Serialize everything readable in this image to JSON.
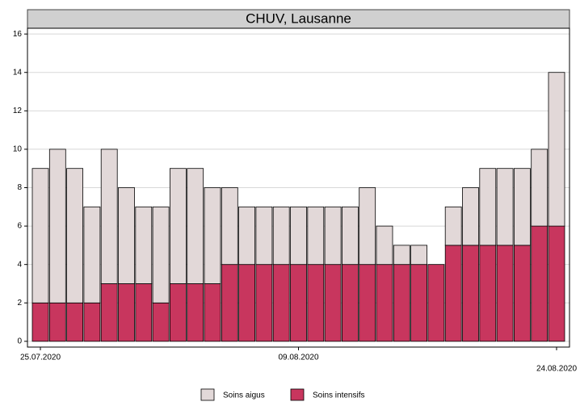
{
  "chart_data": {
    "type": "stacked-bar",
    "title": "CHUV, Lausanne",
    "categories": [
      "25.07.2020",
      null,
      null,
      null,
      null,
      null,
      null,
      null,
      null,
      null,
      null,
      null,
      null,
      null,
      null,
      "09.08.2020",
      null,
      null,
      null,
      null,
      null,
      null,
      null,
      null,
      null,
      null,
      null,
      null,
      null,
      null,
      "24.08.2020"
    ],
    "series": [
      {
        "name": "Soins intensifs",
        "color": "#c8365e",
        "values": [
          2,
          2,
          2,
          2,
          3,
          3,
          3,
          2,
          3,
          3,
          3,
          4,
          4,
          4,
          4,
          4,
          4,
          4,
          4,
          4,
          4,
          4,
          4,
          4,
          5,
          5,
          5,
          5,
          5,
          6,
          6
        ]
      },
      {
        "name": "Soins aigus",
        "color": "#e2d8d8",
        "values": [
          7,
          8,
          7,
          5,
          7,
          5,
          4,
          5,
          6,
          6,
          5,
          4,
          3,
          3,
          3,
          3,
          3,
          3,
          3,
          4,
          2,
          1,
          1,
          0,
          2,
          3,
          4,
          4,
          4,
          4,
          8
        ]
      }
    ],
    "ylim": [
      -0.3,
      16.3
    ],
    "yticks": [
      0,
      2,
      4,
      6,
      8,
      10,
      12,
      14,
      16
    ],
    "grid": true
  }
}
